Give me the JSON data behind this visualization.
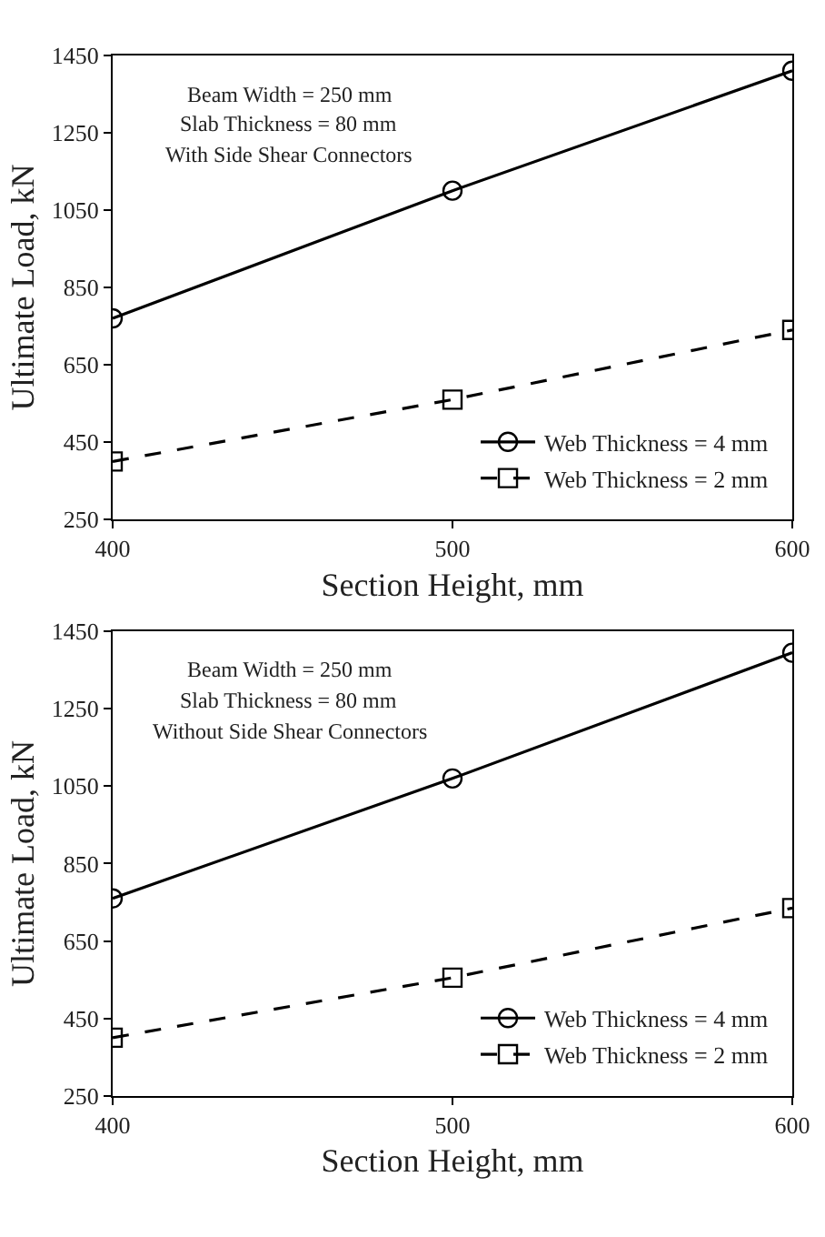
{
  "chart_data": [
    {
      "type": "line",
      "xlabel": "Section Height, mm",
      "ylabel": "Ultimate Load, kN",
      "annotations": [
        "Beam Width = 250 mm",
        "Slab Thickness = 80 mm",
        "With Side Shear Connectors"
      ],
      "x": [
        400,
        500,
        600
      ],
      "series": [
        {
          "name": "Web Thickness = 4 mm",
          "color": "#000000",
          "values": [
            770,
            1100,
            1410
          ],
          "marker": "circle",
          "line_style": "solid"
        },
        {
          "name": "Web Thickness = 2 mm",
          "color": "#000000",
          "values": [
            400,
            560,
            740
          ],
          "marker": "square",
          "line_style": "dashed"
        }
      ],
      "xlim": [
        400,
        600
      ],
      "xticks": [
        400,
        500,
        600
      ],
      "ylim": [
        250,
        1450
      ],
      "yticks": [
        250,
        450,
        650,
        850,
        1050,
        1250,
        1450
      ],
      "legend": "bottom right"
    },
    {
      "type": "line",
      "xlabel": "Section Height, mm",
      "ylabel": "Ultimate Load, kN",
      "annotations": [
        "Beam Width = 250 mm",
        "Slab Thickness = 80 mm",
        "Without Side Shear Connectors"
      ],
      "x": [
        400,
        500,
        600
      ],
      "series": [
        {
          "name": "Web Thickness = 4 mm",
          "color": "#000000",
          "values": [
            760,
            1070,
            1395
          ],
          "marker": "circle",
          "line_style": "solid"
        },
        {
          "name": "Web Thickness = 2 mm",
          "color": "#000000",
          "values": [
            400,
            555,
            735
          ],
          "marker": "square",
          "line_style": "dashed"
        }
      ],
      "xlim": [
        400,
        600
      ],
      "xticks": [
        400,
        500,
        600
      ],
      "ylim": [
        250,
        1450
      ],
      "yticks": [
        250,
        450,
        650,
        850,
        1050,
        1250,
        1450
      ],
      "legend": "bottom right"
    }
  ]
}
